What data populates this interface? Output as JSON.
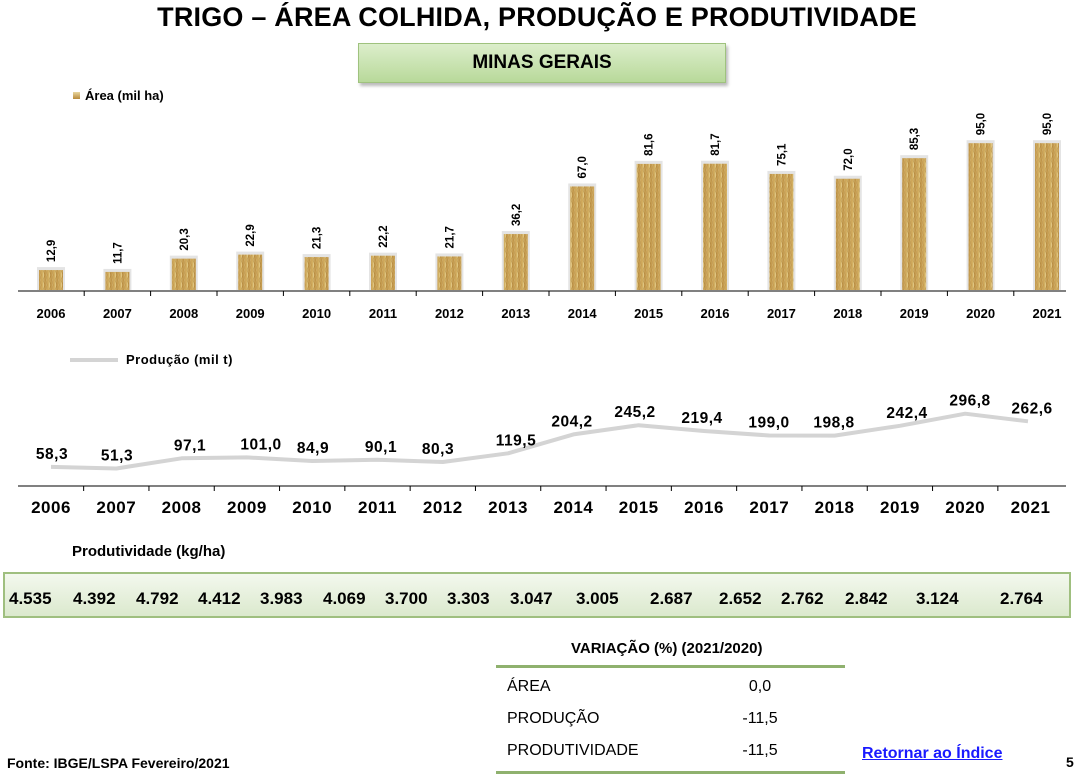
{
  "title": "TRIGO – ÁREA COLHIDA, PRODUÇÃO E PRODUTIVIDADE",
  "region": "MINAS GERAIS",
  "chart_data": [
    {
      "type": "bar",
      "legend": "Área (mil ha)",
      "categories": [
        "2006",
        "2007",
        "2008",
        "2009",
        "2010",
        "2011",
        "2012",
        "2013",
        "2014",
        "2015",
        "2016",
        "2017",
        "2018",
        "2019",
        "2020",
        "2021"
      ],
      "values": [
        12.9,
        11.7,
        20.3,
        22.9,
        21.3,
        22.2,
        21.7,
        36.2,
        67.0,
        81.6,
        81.7,
        75.1,
        72.0,
        85.3,
        95.0,
        95.0
      ],
      "value_labels": [
        "12,9",
        "11,7",
        "20,3",
        "22,9",
        "21,3",
        "22,2",
        "21,7",
        "36,2",
        "67,0",
        "81,6",
        "81,7",
        "75,1",
        "72,0",
        "85,3",
        "95,0",
        "95,0"
      ],
      "ylim": [
        0,
        110
      ]
    },
    {
      "type": "line",
      "legend": "Produção (mil t)",
      "categories": [
        "2006",
        "2007",
        "2008",
        "2009",
        "2010",
        "2011",
        "2012",
        "2013",
        "2014",
        "2015",
        "2016",
        "2017",
        "2018",
        "2019",
        "2020",
        "2021"
      ],
      "values": [
        58.3,
        51.3,
        97.1,
        101.0,
        84.9,
        90.1,
        80.3,
        119.5,
        204.2,
        245.2,
        219.4,
        199.0,
        198.8,
        242.4,
        296.8,
        262.6
      ],
      "value_labels": [
        "58,3",
        "51,3",
        "97,1",
        "101,0",
        "84,9",
        "90,1",
        "80,3",
        "119,5",
        "204,2",
        "245,2",
        "219,4",
        "199,0",
        "198,8",
        "242,4",
        "296,8",
        "262,6"
      ],
      "ylim": [
        0,
        400
      ],
      "line_color": "#d4d4d4"
    }
  ],
  "produtividade": {
    "title": "Produtividade (kg/ha)",
    "values": [
      "4.535",
      "4.392",
      "4.792",
      "4.412",
      "3.983",
      "4.069",
      "3.700",
      "3.303",
      "3.047",
      "3.005",
      "2.687",
      "2.652",
      "2.762",
      "2.842",
      "3.124",
      "2.764"
    ]
  },
  "variacao": {
    "title": "VARIAÇÃO (%) (2021/2020)",
    "rows": [
      {
        "label": "ÁREA",
        "value": "0,0"
      },
      {
        "label": "PRODUÇÃO",
        "value": "-11,5"
      },
      {
        "label": "PRODUTIVIDADE",
        "value": "-11,5"
      }
    ]
  },
  "source": "Fonte: IBGE/LSPA  Fevereiro/2021",
  "back_link": "Retornar ao Índice",
  "page_number": "5"
}
